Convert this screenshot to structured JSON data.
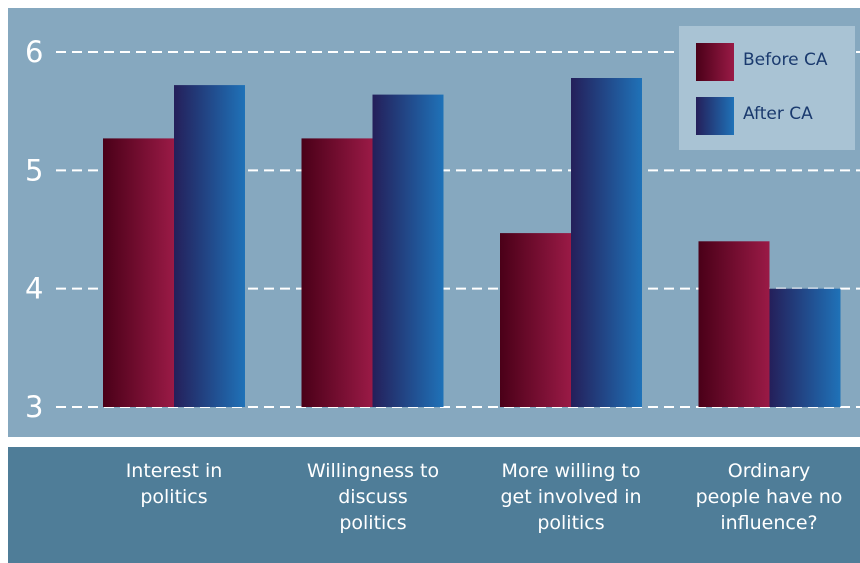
{
  "chart_data": {
    "type": "bar",
    "categories": [
      "Interest in\npolitics",
      "Willingness to\ndiscuss\npolitics",
      "More willing to\nget involved in\npolitics",
      "Ordinary\npeople have no\ninfluence?"
    ],
    "series": [
      {
        "name": "Before CA",
        "values": [
          5.27,
          5.27,
          4.47,
          4.4
        ],
        "color_dark": "#4a0018",
        "color_light": "#9a1a46"
      },
      {
        "name": "After CA",
        "values": [
          5.72,
          5.64,
          5.78,
          4.0
        ],
        "color_dark": "#241f5a",
        "color_light": "#1f72b8"
      }
    ],
    "ylim": [
      3,
      6
    ],
    "yticks": [
      "3",
      "4",
      "5",
      "6"
    ],
    "grid": true,
    "legend_position": "top-right",
    "title": "",
    "xlabel": "",
    "ylabel": ""
  }
}
